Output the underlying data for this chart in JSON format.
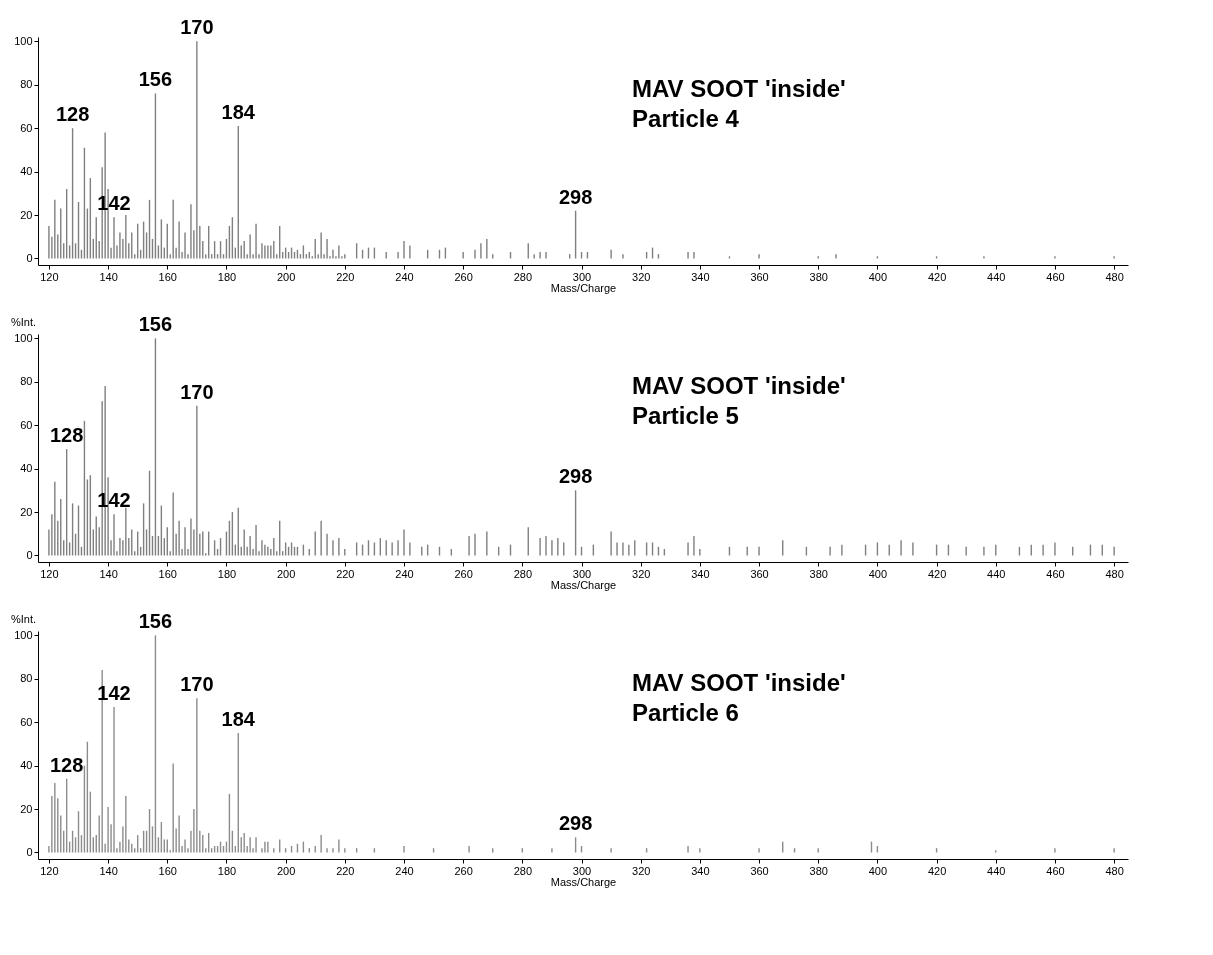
{
  "chart_data": [
    {
      "type": "bar",
      "title": "MAV SOOT 'inside'",
      "subtitle": "Particle 4",
      "xlabel": "Mass/Charge",
      "xlim": [
        118,
        483
      ],
      "xticks": [
        120,
        140,
        160,
        180,
        200,
        220,
        240,
        260,
        280,
        300,
        320,
        340,
        360,
        380,
        400,
        420,
        440,
        460,
        480
      ],
      "ylim": [
        -3,
        102
      ],
      "yticks": [
        0,
        20,
        40,
        60,
        80,
        100
      ],
      "grid": false,
      "annotations": [
        {
          "text": "128",
          "x": 128,
          "y": 60
        },
        {
          "text": "142",
          "x": 142,
          "y": 19
        },
        {
          "text": "156",
          "x": 156,
          "y": 76
        },
        {
          "text": "170",
          "x": 170,
          "y": 100
        },
        {
          "text": "184",
          "x": 184,
          "y": 61
        },
        {
          "text": "298",
          "x": 298,
          "y": 22
        }
      ],
      "x": [
        120,
        121,
        122,
        123,
        124,
        125,
        126,
        127,
        128,
        129,
        130,
        131,
        132,
        133,
        134,
        135,
        136,
        137,
        138,
        139,
        140,
        141,
        142,
        143,
        144,
        145,
        146,
        147,
        148,
        149,
        150,
        151,
        152,
        153,
        154,
        155,
        156,
        157,
        158,
        159,
        160,
        161,
        162,
        163,
        164,
        165,
        166,
        167,
        168,
        169,
        170,
        171,
        172,
        173,
        174,
        175,
        176,
        177,
        178,
        179,
        180,
        181,
        182,
        183,
        184,
        185,
        186,
        187,
        188,
        189,
        190,
        191,
        192,
        193,
        194,
        195,
        196,
        197,
        198,
        199,
        200,
        201,
        202,
        203,
        204,
        205,
        206,
        207,
        208,
        209,
        210,
        211,
        212,
        213,
        214,
        215,
        216,
        217,
        218,
        219,
        220,
        224,
        226,
        228,
        230,
        234,
        238,
        240,
        242,
        248,
        252,
        254,
        260,
        264,
        266,
        268,
        270,
        276,
        282,
        284,
        286,
        288,
        296,
        298,
        300,
        302,
        310,
        314,
        322,
        324,
        326,
        336,
        338,
        350,
        360,
        380,
        386,
        400,
        420,
        436,
        460,
        480
      ],
      "series": [
        {
          "color": "#7f7f7f",
          "values": [
            15,
            10,
            27,
            11,
            23,
            7,
            32,
            6,
            60,
            7,
            26,
            4,
            51,
            23,
            37,
            9,
            19,
            8,
            42,
            58,
            32,
            5,
            19,
            6,
            12,
            9,
            20,
            7,
            12,
            2,
            16,
            4,
            17,
            12,
            27,
            9,
            76,
            6,
            18,
            5,
            16,
            2,
            27,
            5,
            17,
            3,
            12,
            2,
            25,
            13,
            100,
            15,
            8,
            2,
            15,
            2,
            8,
            2,
            8,
            2,
            9,
            15,
            19,
            5,
            61,
            6,
            8,
            2,
            11,
            2,
            16,
            2,
            7,
            6,
            6,
            6,
            8,
            2,
            15,
            3,
            5,
            3,
            5,
            3,
            4,
            2,
            6,
            2,
            3,
            1,
            9,
            2,
            12,
            2,
            9,
            1,
            4,
            1,
            6,
            1,
            2,
            7,
            4,
            5,
            5,
            3,
            3,
            8,
            6,
            4,
            4,
            5,
            3,
            4,
            7,
            9,
            2,
            3,
            7,
            2,
            3,
            3,
            2,
            22,
            3,
            3,
            4,
            2,
            3,
            5,
            2,
            3,
            3,
            1,
            2,
            1,
            2,
            1,
            1,
            1,
            1,
            1
          ]
        }
      ]
    },
    {
      "type": "bar",
      "title": "MAV SOOT 'inside'",
      "subtitle": "Particle 5",
      "xlabel": "Mass/Charge",
      "ylabel": "%Int.",
      "xlim": [
        118,
        483
      ],
      "xticks": [
        120,
        140,
        160,
        180,
        200,
        220,
        240,
        260,
        280,
        300,
        320,
        340,
        360,
        380,
        400,
        420,
        440,
        460,
        480
      ],
      "ylim": [
        -3,
        102
      ],
      "yticks": [
        0,
        20,
        40,
        60,
        80,
        100
      ],
      "grid": false,
      "annotations": [
        {
          "text": "128",
          "x": 126,
          "y": 49
        },
        {
          "text": "142",
          "x": 142,
          "y": 19
        },
        {
          "text": "156",
          "x": 156,
          "y": 100
        },
        {
          "text": "170",
          "x": 170,
          "y": 69
        },
        {
          "text": "298",
          "x": 298,
          "y": 30
        }
      ],
      "x": [
        120,
        121,
        122,
        123,
        124,
        125,
        126,
        127,
        128,
        129,
        130,
        131,
        132,
        133,
        134,
        135,
        136,
        137,
        138,
        139,
        140,
        141,
        142,
        143,
        144,
        145,
        146,
        147,
        148,
        149,
        150,
        151,
        152,
        153,
        154,
        155,
        156,
        157,
        158,
        159,
        160,
        161,
        162,
        163,
        164,
        165,
        166,
        167,
        168,
        169,
        170,
        171,
        172,
        173,
        174,
        176,
        177,
        178,
        180,
        181,
        182,
        183,
        184,
        185,
        186,
        187,
        188,
        189,
        190,
        191,
        192,
        193,
        194,
        195,
        196,
        197,
        198,
        199,
        200,
        201,
        202,
        203,
        204,
        206,
        208,
        210,
        212,
        214,
        216,
        218,
        220,
        224,
        226,
        228,
        230,
        232,
        234,
        236,
        238,
        240,
        242,
        246,
        248,
        252,
        256,
        262,
        264,
        268,
        272,
        276,
        282,
        286,
        288,
        290,
        292,
        294,
        298,
        300,
        304,
        310,
        312,
        314,
        316,
        318,
        322,
        324,
        326,
        328,
        336,
        338,
        340,
        350,
        356,
        360,
        368,
        376,
        384,
        388,
        396,
        400,
        404,
        408,
        412,
        420,
        424,
        430,
        436,
        440,
        448,
        452,
        456,
        460,
        466,
        472,
        476,
        480
      ],
      "series": [
        {
          "color": "#7f7f7f",
          "values": [
            12,
            19,
            34,
            16,
            26,
            7,
            49,
            6,
            24,
            10,
            23,
            4,
            62,
            35,
            37,
            12,
            18,
            13,
            71,
            78,
            36,
            7,
            19,
            2,
            8,
            7,
            22,
            8,
            12,
            2,
            11,
            4,
            24,
            12,
            39,
            9,
            100,
            9,
            23,
            8,
            13,
            2,
            29,
            10,
            16,
            3,
            13,
            3,
            17,
            12,
            69,
            10,
            11,
            1,
            11,
            7,
            3,
            8,
            11,
            16,
            20,
            5,
            22,
            4,
            12,
            4,
            9,
            3,
            14,
            2,
            7,
            5,
            4,
            3,
            8,
            2,
            16,
            2,
            6,
            4,
            6,
            4,
            4,
            5,
            3,
            11,
            16,
            10,
            7,
            8,
            3,
            6,
            5,
            7,
            6,
            8,
            7,
            6,
            7,
            12,
            6,
            4,
            5,
            4,
            3,
            9,
            10,
            11,
            4,
            5,
            13,
            8,
            9,
            7,
            8,
            6,
            30,
            4,
            5,
            11,
            6,
            6,
            5,
            7,
            6,
            6,
            4,
            3,
            6,
            9,
            3,
            4,
            4,
            4,
            7,
            4,
            4,
            5,
            5,
            6,
            5,
            7,
            6,
            5,
            5,
            4,
            4,
            5,
            4,
            5,
            5,
            6,
            4,
            5,
            5,
            4
          ]
        }
      ]
    },
    {
      "type": "bar",
      "title": "MAV SOOT 'inside'",
      "subtitle": "Particle 6",
      "xlabel": "Mass/Charge",
      "ylabel": "%Int.",
      "xlim": [
        118,
        483
      ],
      "xticks": [
        120,
        140,
        160,
        180,
        200,
        220,
        240,
        260,
        280,
        300,
        320,
        340,
        360,
        380,
        400,
        420,
        440,
        460,
        480
      ],
      "ylim": [
        -3,
        102
      ],
      "yticks": [
        0,
        20,
        40,
        60,
        80,
        100
      ],
      "grid": false,
      "annotations": [
        {
          "text": "128",
          "x": 126,
          "y": 34
        },
        {
          "text": "142",
          "x": 142,
          "y": 67
        },
        {
          "text": "156",
          "x": 156,
          "y": 100
        },
        {
          "text": "170",
          "x": 170,
          "y": 71
        },
        {
          "text": "184",
          "x": 184,
          "y": 55
        },
        {
          "text": "298",
          "x": 298,
          "y": 7
        }
      ],
      "x": [
        120,
        121,
        122,
        123,
        124,
        125,
        126,
        127,
        128,
        129,
        130,
        131,
        132,
        133,
        134,
        135,
        136,
        137,
        138,
        139,
        140,
        141,
        142,
        143,
        144,
        145,
        146,
        147,
        148,
        149,
        150,
        151,
        152,
        153,
        154,
        155,
        156,
        157,
        158,
        159,
        160,
        161,
        162,
        163,
        164,
        165,
        166,
        167,
        168,
        169,
        170,
        171,
        172,
        173,
        174,
        175,
        176,
        177,
        178,
        179,
        180,
        181,
        182,
        183,
        184,
        185,
        186,
        187,
        188,
        189,
        190,
        192,
        193,
        194,
        196,
        198,
        200,
        202,
        204,
        206,
        208,
        210,
        212,
        214,
        216,
        218,
        220,
        224,
        230,
        240,
        250,
        262,
        270,
        280,
        290,
        298,
        300,
        310,
        322,
        336,
        340,
        360,
        368,
        372,
        380,
        398,
        400,
        420,
        440,
        460,
        480
      ],
      "series": [
        {
          "color": "#8c8c8c",
          "values": [
            3,
            26,
            32,
            25,
            17,
            10,
            34,
            5,
            10,
            7,
            19,
            8,
            40,
            51,
            28,
            7,
            8,
            17,
            84,
            4,
            21,
            13,
            67,
            2,
            5,
            12,
            26,
            6,
            4,
            2,
            8,
            2,
            10,
            10,
            20,
            12,
            100,
            7,
            14,
            6,
            6,
            1,
            41,
            11,
            17,
            3,
            6,
            2,
            10,
            20,
            71,
            10,
            8,
            2,
            9,
            2,
            3,
            3,
            5,
            3,
            5,
            27,
            10,
            3,
            55,
            7,
            9,
            3,
            7,
            2,
            7,
            2,
            5,
            5,
            2,
            6,
            2,
            3,
            4,
            5,
            2,
            3,
            8,
            2,
            2,
            6,
            2,
            2,
            2,
            3,
            2,
            3,
            2,
            2,
            2,
            7,
            3,
            2,
            2,
            3,
            2,
            2,
            5,
            2,
            2,
            5,
            3,
            2,
            1,
            2,
            2
          ]
        }
      ]
    }
  ]
}
